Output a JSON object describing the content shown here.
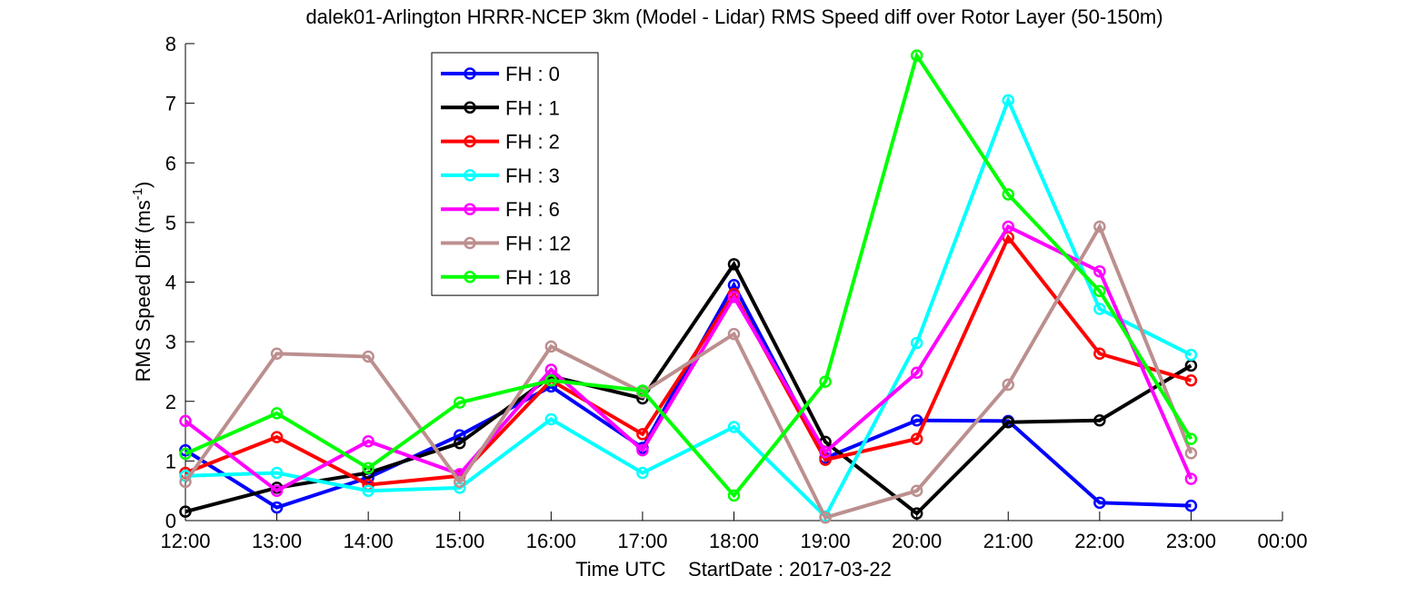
{
  "chart_data": {
    "type": "line",
    "title": "dalek01-Arlington HRRR-NCEP 3km (Model - Lidar) RMS Speed diff over Rotor Layer (50-150m)",
    "xlabel": "Time UTC    StartDate : 2017-03-22",
    "ylabel": "RMS Speed Diff (ms",
    "ylabel_sup": "-1",
    "ylabel_close": ")",
    "ylim": [
      0,
      8
    ],
    "yticks": [
      0,
      1,
      2,
      3,
      4,
      5,
      6,
      7,
      8
    ],
    "x": [
      "12:00",
      "13:00",
      "14:00",
      "15:00",
      "16:00",
      "17:00",
      "18:00",
      "19:00",
      "20:00",
      "21:00",
      "22:00",
      "23:00"
    ],
    "xticks": [
      "12:00",
      "13:00",
      "14:00",
      "15:00",
      "16:00",
      "17:00",
      "18:00",
      "19:00",
      "20:00",
      "21:00",
      "22:00",
      "23:00",
      "00:00"
    ],
    "grid": false,
    "legend_position": "top-left",
    "series": [
      {
        "name": "FH : 0",
        "color": "#0000ff",
        "values": [
          1.18,
          0.22,
          0.72,
          1.43,
          2.25,
          1.22,
          3.95,
          1.05,
          1.68,
          1.67,
          0.3,
          0.25
        ]
      },
      {
        "name": "FH : 1",
        "color": "#000000",
        "values": [
          0.15,
          0.55,
          0.8,
          1.3,
          2.42,
          2.05,
          4.3,
          1.32,
          0.12,
          1.65,
          1.68,
          2.6
        ]
      },
      {
        "name": "FH : 2",
        "color": "#ff0000",
        "values": [
          0.8,
          1.4,
          0.6,
          0.75,
          2.35,
          1.45,
          3.8,
          1.02,
          1.37,
          4.75,
          2.8,
          2.35
        ]
      },
      {
        "name": "FH : 3",
        "color": "#00ffff",
        "values": [
          0.75,
          0.8,
          0.5,
          0.55,
          1.7,
          0.8,
          1.57,
          0.07,
          2.98,
          7.05,
          3.55,
          2.78
        ]
      },
      {
        "name": "FH : 6",
        "color": "#ff00ff",
        "values": [
          1.67,
          0.5,
          1.33,
          0.78,
          2.53,
          1.18,
          3.75,
          1.15,
          2.48,
          4.93,
          4.18,
          0.7
        ]
      },
      {
        "name": "FH : 12",
        "color": "#bc8f8f",
        "values": [
          0.65,
          2.8,
          2.75,
          0.65,
          2.92,
          2.15,
          3.13,
          0.05,
          0.5,
          2.28,
          4.93,
          1.13
        ]
      },
      {
        "name": "FH : 18",
        "color": "#00ff00",
        "values": [
          1.12,
          1.8,
          0.88,
          1.98,
          2.35,
          2.18,
          0.42,
          2.33,
          7.8,
          5.47,
          3.85,
          1.37
        ]
      }
    ]
  }
}
